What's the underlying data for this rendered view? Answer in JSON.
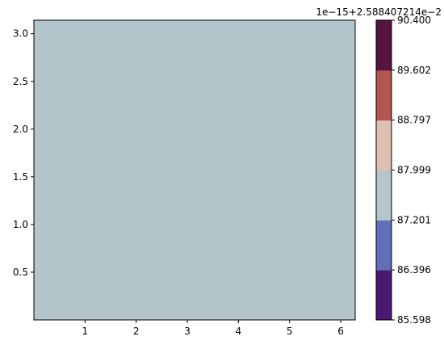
{
  "chart_data": {
    "type": "heatmap",
    "plot_type": "filled-contour",
    "x_ticks": [
      {
        "value": 1,
        "label": "1"
      },
      {
        "value": 2,
        "label": "2"
      },
      {
        "value": 3,
        "label": "3"
      },
      {
        "value": 4,
        "label": "4"
      },
      {
        "value": 5,
        "label": "5"
      },
      {
        "value": 6,
        "label": "6"
      }
    ],
    "y_ticks": [
      {
        "value": 0.5,
        "label": "0.5"
      },
      {
        "value": 1.0,
        "label": "1.0"
      },
      {
        "value": 1.5,
        "label": "1.5"
      },
      {
        "value": 2.0,
        "label": "2.0"
      },
      {
        "value": 2.5,
        "label": "2.5"
      },
      {
        "value": 3.0,
        "label": "3.0"
      }
    ],
    "xlim": [
      0,
      6.283
    ],
    "ylim": [
      0,
      3.1416
    ],
    "grid": false,
    "field": {
      "value_level": "87.999–87.201 band",
      "fill_color": "#b4c6cc"
    },
    "colorbar": {
      "offset_label": "1e−15+2.588407214e−2",
      "levels": [
        {
          "label": "85.598",
          "value": 85.598
        },
        {
          "label": "86.396",
          "value": 86.396
        },
        {
          "label": "87.201",
          "value": 87.201
        },
        {
          "label": "87.999",
          "value": 87.999
        },
        {
          "label": "88.797",
          "value": 88.797
        },
        {
          "label": "89.602",
          "value": 89.602
        },
        {
          "label": "90.400",
          "value": 90.4
        }
      ],
      "band_colors": [
        "#4a1a73",
        "#6070b8",
        "#b4c6cc",
        "#dcc0b0",
        "#b35650",
        "#55153f"
      ]
    }
  }
}
